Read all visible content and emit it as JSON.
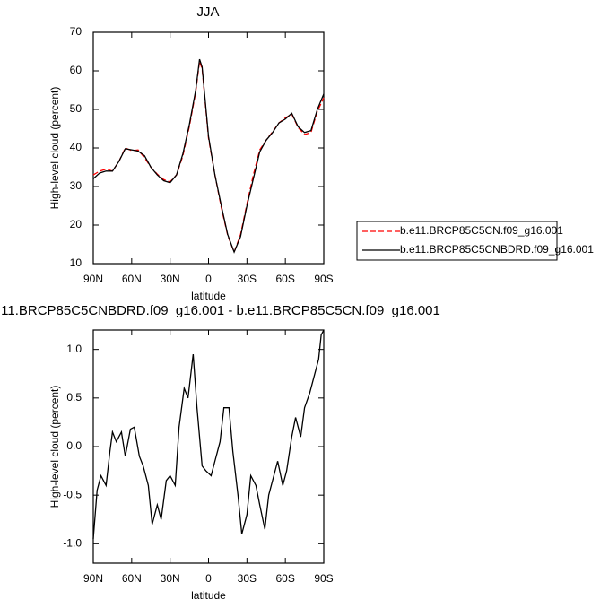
{
  "chart_data": [
    {
      "type": "line",
      "title": "JJA",
      "xlabel": "latitude",
      "ylabel": "High-level cloud (percent)",
      "x": [
        90,
        85,
        80,
        75,
        70,
        65,
        60,
        55,
        50,
        45,
        40,
        35,
        30,
        25,
        20,
        15,
        10,
        7,
        5,
        0,
        -5,
        -10,
        -15,
        -20,
        -25,
        -30,
        -35,
        -40,
        -45,
        -50,
        -55,
        -60,
        -65,
        -70,
        -75,
        -80,
        -85,
        -90
      ],
      "xlim": [
        90,
        -90
      ],
      "xticks": [
        {
          "value": 90,
          "label": "90N"
        },
        {
          "value": 60,
          "label": "60N"
        },
        {
          "value": 30,
          "label": "30N"
        },
        0,
        {
          "value": -30,
          "label": "30S"
        },
        {
          "value": -60,
          "label": "60S"
        },
        {
          "value": -90,
          "label": "90S"
        }
      ],
      "ylim": [
        10,
        70
      ],
      "yticks": [
        10,
        20,
        30,
        40,
        50,
        60,
        70
      ],
      "legend": "right",
      "series": [
        {
          "name": "b.e11.BRCP85C5CN.f09_g16.001",
          "color": "#ff0000",
          "style": "dashed",
          "values": [
            33,
            34,
            34.5,
            34,
            36.5,
            40,
            39.3,
            39.5,
            37.5,
            35,
            33.2,
            31.8,
            31.2,
            33,
            38,
            45.5,
            54.5,
            62.5,
            60.5,
            42.5,
            33,
            24.5,
            17.3,
            13,
            17.5,
            25.5,
            33,
            39.5,
            42,
            44.2,
            46.5,
            47.8,
            48.8,
            45.3,
            43.5,
            44,
            49.5,
            53
          ]
        },
        {
          "name": "b.e11.BRCP85C5CNBDRD.f09_g16.001",
          "color": "#000000",
          "style": "solid",
          "values": [
            32,
            33.5,
            34,
            34,
            36.5,
            39.8,
            39.5,
            39.2,
            38,
            35,
            33,
            31.5,
            31,
            33,
            38.5,
            46,
            55,
            63,
            61,
            43,
            33,
            25,
            17.5,
            13,
            17,
            25,
            32,
            39,
            42,
            44,
            46.5,
            47.5,
            49,
            45.5,
            44,
            44.5,
            50,
            54
          ]
        }
      ]
    },
    {
      "type": "line",
      "title": "11.BRCP85C5CNBDRD.f09_g16.001 - b.e11.BRCP85C5CN.f09_g16.001",
      "xlabel": "latitude",
      "ylabel": "High-level cloud (percent)",
      "x": [
        90,
        87,
        84,
        82,
        80,
        77,
        75,
        72,
        68,
        65,
        61,
        58,
        54,
        51,
        47,
        44,
        40,
        37,
        33,
        30,
        26,
        23,
        19,
        16,
        12,
        9,
        5,
        2,
        -2,
        -5,
        -9,
        -12,
        -16,
        -19,
        -23,
        -26,
        -30,
        -33,
        -37,
        -40,
        -44,
        -47,
        -51,
        -54,
        -58,
        -61,
        -65,
        -68,
        -72,
        -75,
        -79,
        -82,
        -86,
        -88,
        -90
      ],
      "xlim": [
        90,
        -90
      ],
      "xticks": [
        {
          "value": 90,
          "label": "90N"
        },
        {
          "value": 60,
          "label": "60N"
        },
        {
          "value": 30,
          "label": "30N"
        },
        0,
        {
          "value": -30,
          "label": "30S"
        },
        {
          "value": -60,
          "label": "60S"
        },
        {
          "value": -90,
          "label": "90S"
        }
      ],
      "ylim": [
        -1.2,
        1.2
      ],
      "yticks": [
        {
          "value": -1,
          "label": "-1.0"
        },
        -0.5,
        {
          "value": 0,
          "label": "0.0"
        },
        0.5,
        {
          "value": 1,
          "label": "1.0"
        }
      ],
      "series": [
        {
          "color": "#000000",
          "style": "solid",
          "values": [
            -0.95,
            -0.45,
            -0.3,
            -0.35,
            -0.4,
            -0.05,
            0.15,
            0.05,
            0.15,
            -0.1,
            0.18,
            0.2,
            -0.1,
            -0.2,
            -0.4,
            -0.8,
            -0.6,
            -0.75,
            -0.35,
            -0.3,
            -0.4,
            0.2,
            0.6,
            0.5,
            0.95,
            0.4,
            -0.2,
            -0.25,
            -0.3,
            -0.15,
            0.05,
            0.4,
            0.4,
            -0.05,
            -0.5,
            -0.9,
            -0.7,
            -0.3,
            -0.4,
            -0.6,
            -0.85,
            -0.5,
            -0.3,
            -0.15,
            -0.4,
            -0.25,
            0.1,
            0.3,
            0.1,
            0.4,
            0.55,
            0.7,
            0.9,
            1.15,
            1.2
          ]
        }
      ]
    }
  ]
}
